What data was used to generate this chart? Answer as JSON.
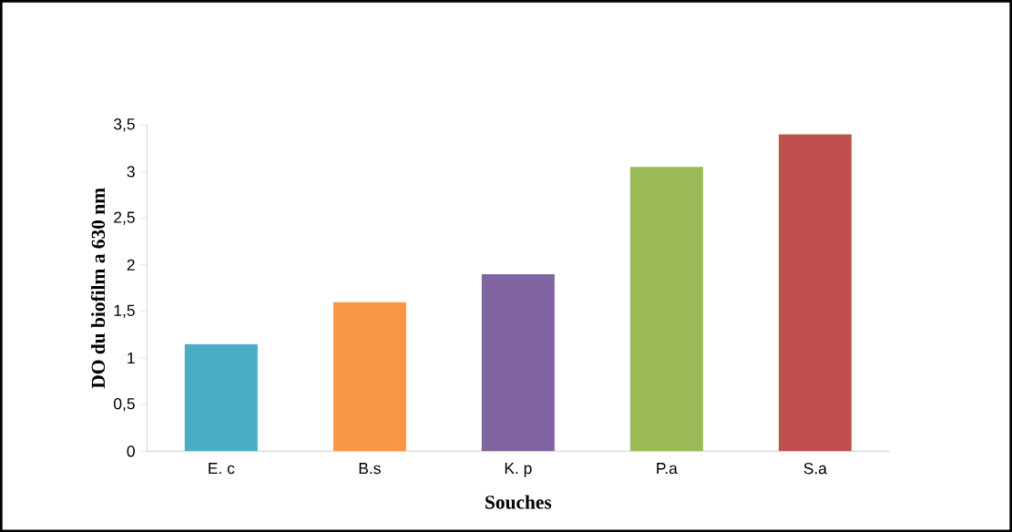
{
  "chart_data": {
    "type": "bar",
    "xlabel": "Souches",
    "ylabel": "DO du biofilm a 630 nm",
    "categories": [
      "E. c",
      "B.s",
      "K. p",
      "P.a",
      "S.a"
    ],
    "values": [
      1.15,
      1.6,
      1.9,
      3.05,
      3.4
    ],
    "colors": [
      "#4bacc6",
      "#f79646",
      "#8064a2",
      "#9bbb59",
      "#c0504d"
    ],
    "ylim": [
      0,
      3.5
    ],
    "yticks": [
      0,
      {
        "value": 0.5,
        "label": "0,5"
      },
      1,
      {
        "value": 1.5,
        "label": "1,5"
      },
      2,
      {
        "value": 2.5,
        "label": "2,5"
      },
      3,
      {
        "value": 3.5,
        "label": "3,5"
      }
    ],
    "grid": false
  }
}
